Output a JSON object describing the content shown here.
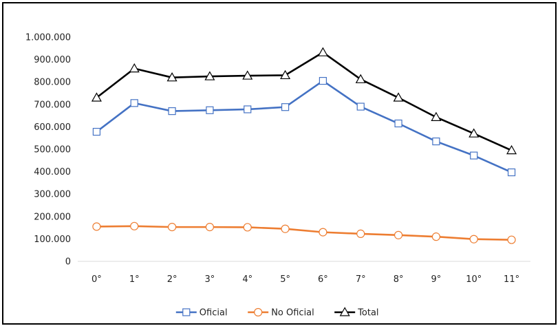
{
  "chart_data": {
    "type": "line",
    "title": "",
    "xlabel": "",
    "ylabel": "",
    "categories": [
      "0°",
      "1°",
      "2°",
      "3°",
      "4°",
      "5°",
      "6°",
      "7°",
      "8°",
      "9°",
      "10°",
      "11°"
    ],
    "ylim": [
      0,
      1000000
    ],
    "y_ticks": [
      0,
      100000,
      200000,
      300000,
      400000,
      500000,
      600000,
      700000,
      800000,
      900000,
      1000000
    ],
    "y_tick_labels": [
      "0",
      "100.000",
      "200.000",
      "300.000",
      "400.000",
      "500.000",
      "600.000",
      "700.000",
      "800.000",
      "900.000",
      "1.000.000"
    ],
    "grid": false,
    "legend_position": "bottom",
    "series": [
      {
        "name": "Oficial",
        "color": "#4472c4",
        "marker": "square",
        "values": [
          578000,
          706000,
          670000,
          674000,
          678000,
          688000,
          805000,
          690000,
          615000,
          535000,
          472000,
          397000
        ]
      },
      {
        "name": "No Oficial",
        "color": "#ed7d31",
        "marker": "circle",
        "values": [
          155000,
          157000,
          153000,
          153000,
          152000,
          145000,
          130000,
          123000,
          117000,
          110000,
          99000,
          96000
        ]
      },
      {
        "name": "Total",
        "color": "#000000",
        "marker": "triangle",
        "values": [
          730000,
          860000,
          820000,
          825000,
          828000,
          830000,
          932000,
          812000,
          730000,
          643000,
          570000,
          495000
        ]
      }
    ]
  }
}
